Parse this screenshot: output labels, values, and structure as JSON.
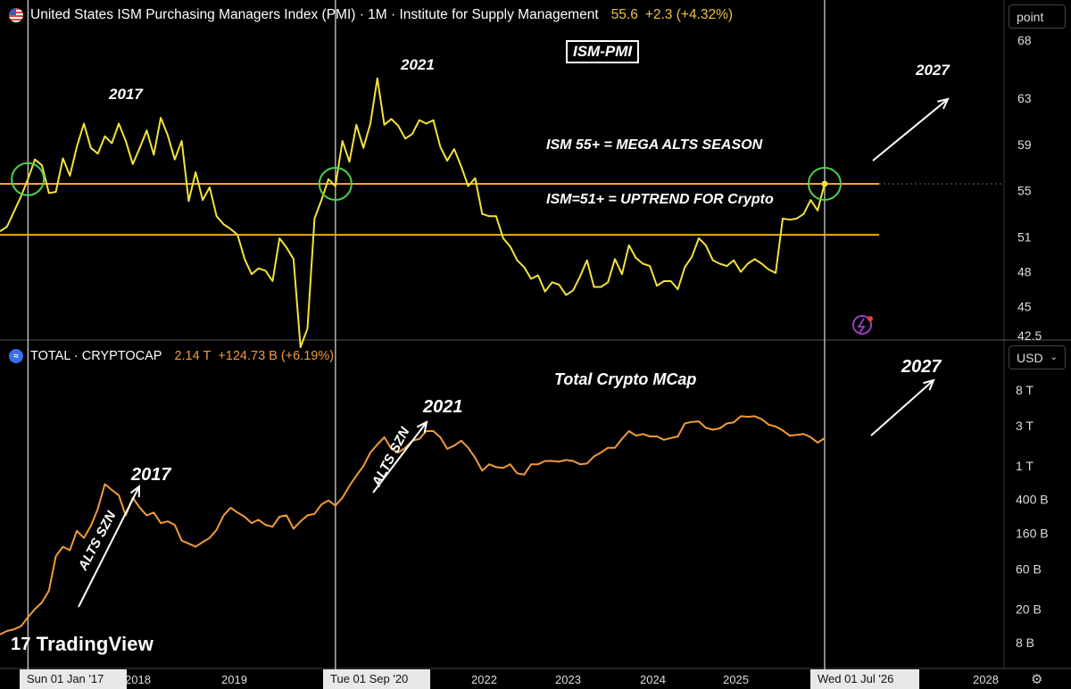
{
  "header_top": {
    "title": "United States ISM Purchasing Managers Index (PMI) · 1M · Institute for Supply Management",
    "value": "55.6",
    "change": "+2.3 (+4.32%)",
    "scale_button": "point"
  },
  "header_bottom": {
    "title": "TOTAL · CRYPTOCAP",
    "value": "2.14 T",
    "change": "+124.73 B (+6.19%)",
    "currency_button": "USD"
  },
  "annotations": {
    "ism_box": "ISM-PMI",
    "mega_alts": "ISM 55+ = MEGA ALTS SEASON",
    "uptrend": "ISM=51+ = UPTREND FOR Crypto",
    "crypto_title": "Total Crypto MCap",
    "y2017_top": "2017",
    "y2021_top": "2021",
    "y2027_top": "2027",
    "y2017_bottom": "2017",
    "y2021_bottom": "2021",
    "y2027_bottom": "2027",
    "alts_szn_1": "ALTS SZN",
    "alts_szn_2": "ALTS SZN"
  },
  "time_axis": {
    "labels": [
      "2018",
      "2019",
      "2022",
      "2023",
      "2024",
      "2025",
      "2028"
    ],
    "crosshair_labels": [
      "Sun 01 Jan '17",
      "Tue 01 Sep '20",
      "Wed 01 Jul '26"
    ]
  },
  "branding": {
    "logo_text": "TradingView"
  },
  "colors": {
    "pmi_line": "#f2e23c",
    "crypto_line": "#f29b3a",
    "hline": "#f5a623",
    "circle": "#4fd14f"
  },
  "chart_data": [
    {
      "type": "line",
      "name": "ISM-PMI",
      "y_ticks": [
        "68",
        "63",
        "59",
        "55",
        "51",
        "48",
        "45",
        "42.5"
      ],
      "ylim": [
        42.5,
        68
      ],
      "hlines": [
        55.6,
        51.2
      ],
      "x": [
        "2016-09",
        "2016-10",
        "2016-11",
        "2016-12",
        "2017-01",
        "2017-02",
        "2017-03",
        "2017-04",
        "2017-05",
        "2017-06",
        "2017-07",
        "2017-08",
        "2017-09",
        "2017-10",
        "2017-11",
        "2017-12",
        "2018-01",
        "2018-02",
        "2018-03",
        "2018-04",
        "2018-05",
        "2018-06",
        "2018-07",
        "2018-08",
        "2018-09",
        "2018-10",
        "2018-11",
        "2018-12",
        "2019-01",
        "2019-02",
        "2019-03",
        "2019-04",
        "2019-05",
        "2019-06",
        "2019-07",
        "2019-08",
        "2019-09",
        "2019-10",
        "2019-11",
        "2019-12",
        "2020-01",
        "2020-02",
        "2020-03",
        "2020-04",
        "2020-05",
        "2020-06",
        "2020-07",
        "2020-08",
        "2020-09",
        "2020-10",
        "2020-11",
        "2020-12",
        "2021-01",
        "2021-02",
        "2021-03",
        "2021-04",
        "2021-05",
        "2021-06",
        "2021-07",
        "2021-08",
        "2021-09",
        "2021-10",
        "2021-11",
        "2021-12",
        "2022-01",
        "2022-02",
        "2022-03",
        "2022-04",
        "2022-05",
        "2022-06",
        "2022-07",
        "2022-08",
        "2022-09",
        "2022-10",
        "2022-11",
        "2022-12",
        "2023-01",
        "2023-02",
        "2023-03",
        "2023-04",
        "2023-05",
        "2023-06",
        "2023-07",
        "2023-08",
        "2023-09",
        "2023-10",
        "2023-11",
        "2023-12",
        "2024-01",
        "2024-02",
        "2024-03",
        "2024-04",
        "2024-05",
        "2024-06",
        "2024-07",
        "2024-08",
        "2024-09",
        "2024-10",
        "2024-11",
        "2024-12",
        "2025-01",
        "2025-02",
        "2025-03",
        "2025-04",
        "2025-05",
        "2025-06",
        "2025-07",
        "2025-08",
        "2025-09",
        "2025-10",
        "2025-11",
        "2025-12",
        "2026-01",
        "2026-02",
        "2026-03",
        "2026-04",
        "2026-05",
        "2026-06",
        "2026-07"
      ],
      "y": [
        51.5,
        51.9,
        53.2,
        54.5,
        56.0,
        57.7,
        57.2,
        54.8,
        54.9,
        57.8,
        56.3,
        58.8,
        60.8,
        58.7,
        58.2,
        59.7,
        59.1,
        60.8,
        59.3,
        57.3,
        58.7,
        60.2,
        58.1,
        61.3,
        59.8,
        57.7,
        59.3,
        54.1,
        56.6,
        54.2,
        55.3,
        52.8,
        52.1,
        51.7,
        51.2,
        49.1,
        47.8,
        48.3,
        48.1,
        47.2,
        50.9,
        50.1,
        49.1,
        41.5,
        43.1,
        52.6,
        54.2,
        56.0,
        55.4,
        59.3,
        57.5,
        60.7,
        58.7,
        60.8,
        64.7,
        60.7,
        61.2,
        60.6,
        59.5,
        59.9,
        61.1,
        60.8,
        61.1,
        58.8,
        57.6,
        58.6,
        57.1,
        55.4,
        56.1,
        53.0,
        52.8,
        52.8,
        50.9,
        50.2,
        49.0,
        48.4,
        47.4,
        47.7,
        46.3,
        47.1,
        46.9,
        46.0,
        46.4,
        47.6,
        49.0,
        46.7,
        46.7,
        47.1,
        49.1,
        47.8,
        50.3,
        49.2,
        48.7,
        48.5,
        46.8,
        47.2,
        47.2,
        46.5,
        48.4,
        49.3,
        50.9,
        50.3,
        49.0,
        48.7,
        48.5,
        49.0,
        48.0,
        48.7,
        49.1,
        48.7,
        48.2,
        47.9,
        52.6,
        52.5,
        52.6,
        53.0,
        54.2,
        53.3,
        55.6
      ]
    },
    {
      "type": "line",
      "name": "Total Crypto MCap",
      "y_scale": "log",
      "y_ticks": [
        "8 T",
        "3 T",
        "1 T",
        "400 B",
        "160 B",
        "60 B",
        "20 B",
        "8 B"
      ],
      "ylim_usd": [
        6000000000.0,
        12000000000000.0
      ],
      "x": [
        "2016-09",
        "2016-10",
        "2016-11",
        "2016-12",
        "2017-01",
        "2017-02",
        "2017-03",
        "2017-04",
        "2017-05",
        "2017-06",
        "2017-07",
        "2017-08",
        "2017-09",
        "2017-10",
        "2017-11",
        "2017-12",
        "2018-01",
        "2018-02",
        "2018-03",
        "2018-04",
        "2018-05",
        "2018-06",
        "2018-07",
        "2018-08",
        "2018-09",
        "2018-10",
        "2018-11",
        "2018-12",
        "2019-01",
        "2019-02",
        "2019-03",
        "2019-04",
        "2019-05",
        "2019-06",
        "2019-07",
        "2019-08",
        "2019-09",
        "2019-10",
        "2019-11",
        "2019-12",
        "2020-01",
        "2020-02",
        "2020-03",
        "2020-04",
        "2020-05",
        "2020-06",
        "2020-07",
        "2020-08",
        "2020-09",
        "2020-10",
        "2020-11",
        "2020-12",
        "2021-01",
        "2021-02",
        "2021-03",
        "2021-04",
        "2021-05",
        "2021-06",
        "2021-07",
        "2021-08",
        "2021-09",
        "2021-10",
        "2021-11",
        "2021-12",
        "2022-01",
        "2022-02",
        "2022-03",
        "2022-04",
        "2022-05",
        "2022-06",
        "2022-07",
        "2022-08",
        "2022-09",
        "2022-10",
        "2022-11",
        "2022-12",
        "2023-01",
        "2023-02",
        "2023-03",
        "2023-04",
        "2023-05",
        "2023-06",
        "2023-07",
        "2023-08",
        "2023-09",
        "2023-10",
        "2023-11",
        "2023-12",
        "2024-01",
        "2024-02",
        "2024-03",
        "2024-04",
        "2024-05",
        "2024-06",
        "2024-07",
        "2024-08",
        "2024-09",
        "2024-10",
        "2024-11",
        "2024-12",
        "2025-01",
        "2025-02",
        "2025-03",
        "2025-04",
        "2025-05",
        "2025-06",
        "2025-07",
        "2025-08",
        "2025-09",
        "2025-10",
        "2025-11",
        "2025-12",
        "2026-01",
        "2026-02",
        "2026-03",
        "2026-04",
        "2026-05",
        "2026-06",
        "2026-07"
      ],
      "y": [
        10000000000.0,
        11000000000.0,
        11500000000.0,
        12500000000.0,
        16000000000.0,
        20000000000.0,
        24000000000.0,
        33000000000.0,
        85000000000.0,
        110000000000.0,
        100000000000.0,
        170000000000.0,
        140000000000.0,
        195000000000.0,
        310000000000.0,
        610000000000.0,
        520000000000.0,
        450000000000.0,
        260000000000.0,
        420000000000.0,
        320000000000.0,
        260000000000.0,
        280000000000.0,
        210000000000.0,
        220000000000.0,
        200000000000.0,
        130000000000.0,
        120000000000.0,
        110000000000.0,
        125000000000.0,
        140000000000.0,
        175000000000.0,
        260000000000.0,
        320000000000.0,
        280000000000.0,
        250000000000.0,
        210000000000.0,
        230000000000.0,
        200000000000.0,
        190000000000.0,
        250000000000.0,
        260000000000.0,
        180000000000.0,
        220000000000.0,
        260000000000.0,
        270000000000.0,
        350000000000.0,
        390000000000.0,
        340000000000.0,
        420000000000.0,
        580000000000.0,
        770000000000.0,
        1000000000000.0,
        1450000000000.0,
        1800000000000.0,
        2200000000000.0,
        1600000000000.0,
        1450000000000.0,
        1650000000000.0,
        2000000000000.0,
        2100000000000.0,
        2600000000000.0,
        2600000000000.0,
        2200000000000.0,
        1600000000000.0,
        1750000000000.0,
        2000000000000.0,
        1650000000000.0,
        1250000000000.0,
        880000000000.0,
        1050000000000.0,
        970000000000.0,
        950000000000.0,
        1050000000000.0,
        820000000000.0,
        790000000000.0,
        1050000000000.0,
        1050000000000.0,
        1150000000000.0,
        1150000000000.0,
        1130000000000.0,
        1180000000000.0,
        1150000000000.0,
        1050000000000.0,
        1070000000000.0,
        1300000000000.0,
        1450000000000.0,
        1650000000000.0,
        1650000000000.0,
        2100000000000.0,
        2600000000000.0,
        2300000000000.0,
        2400000000000.0,
        2250000000000.0,
        2250000000000.0,
        2050000000000.0,
        2150000000000.0,
        2250000000000.0,
        3200000000000.0,
        3350000000000.0,
        3400000000000.0,
        2850000000000.0,
        2700000000000.0,
        2800000000000.0,
        3200000000000.0,
        3300000000000.0,
        3900000000000.0,
        3850000000000.0,
        3900000000000.0,
        3600000000000.0,
        3100000000000.0,
        2950000000000.0,
        2650000000000.0,
        2300000000000.0,
        2350000000000.0,
        2400000000000.0,
        2200000000000.0,
        1900000000000.0,
        2140000000000.0
      ]
    }
  ]
}
